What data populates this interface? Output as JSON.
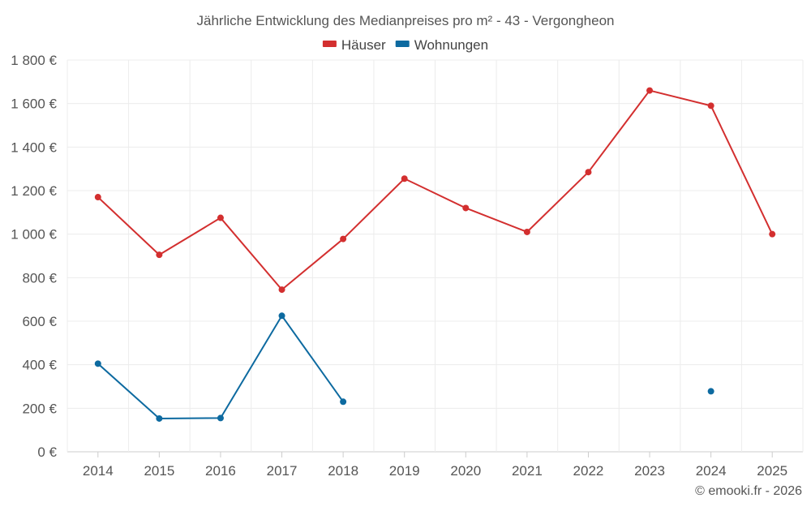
{
  "chart_data": {
    "type": "line",
    "title": "Jährliche Entwicklung des Medianpreises pro m² - 43 - Vergongheon",
    "categories": [
      "2014",
      "2015",
      "2016",
      "2017",
      "2018",
      "2019",
      "2020",
      "2021",
      "2022",
      "2023",
      "2024",
      "2025"
    ],
    "y_ticks": [
      0,
      200,
      400,
      600,
      800,
      1000,
      1200,
      1400,
      1600,
      1800
    ],
    "y_tick_labels": [
      "0 €",
      "200 €",
      "400 €",
      "600 €",
      "800 €",
      "1 000 €",
      "1 200 €",
      "1 400 €",
      "1 600 €",
      "1 800 €"
    ],
    "ylim": [
      0,
      1800
    ],
    "grid": true,
    "legend_position": "top-center",
    "series": [
      {
        "name": "Häuser",
        "color": "#d32f2f",
        "values": [
          1170,
          905,
          1075,
          745,
          978,
          1255,
          1120,
          1010,
          1285,
          1660,
          1590,
          1000
        ]
      },
      {
        "name": "Wohnungen",
        "color": "#0d6aa0",
        "values": [
          405,
          153,
          155,
          625,
          230,
          null,
          null,
          null,
          null,
          null,
          278,
          null
        ]
      }
    ],
    "credit": "© emooki.fr - 2026"
  }
}
